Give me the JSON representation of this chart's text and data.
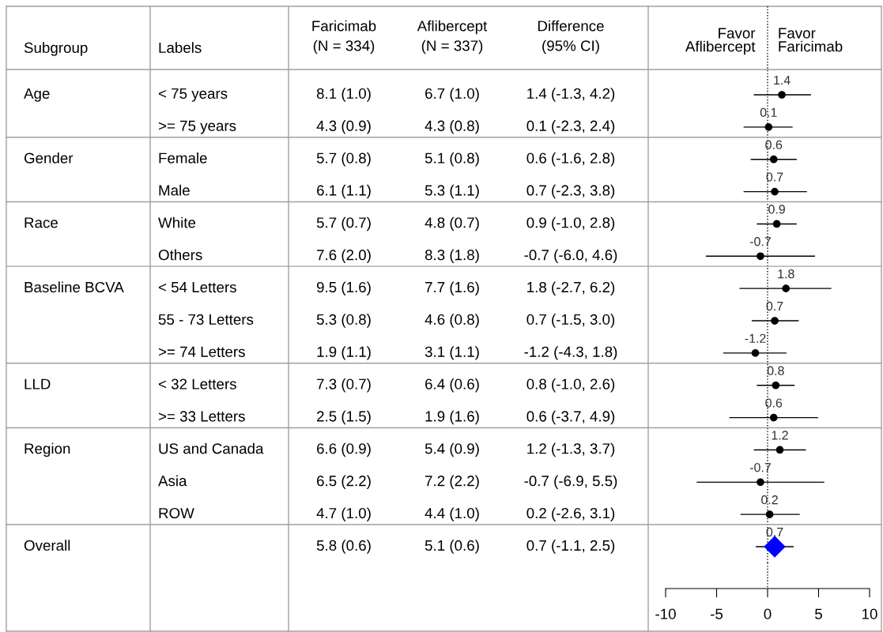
{
  "chart_data": [
    {
      "type": "other",
      "categories": [
        "Subgroup",
        "Labels",
        "Faricimab\n(N = 334)",
        "Aflibercept\n(N = 337)",
        "Difference\n(95% CI)"
      ],
      "cell_labels": [
        [
          "Age",
          "< 75 years",
          "8.1 (1.0)",
          "6.7 (1.0)",
          "1.4 (-1.3, 4.2)"
        ],
        [
          null,
          ">= 75 years",
          "4.3 (0.9)",
          "4.3 (0.8)",
          "0.1 (-2.3, 2.4)"
        ],
        [
          "Gender",
          "Female",
          "5.7 (0.8)",
          "5.1 (0.8)",
          "0.6 (-1.6, 2.8)"
        ],
        [
          null,
          "Male",
          "6.1 (1.1)",
          "5.3 (1.1)",
          "0.7 (-2.3, 3.8)"
        ],
        [
          "Race",
          "White",
          "5.7 (0.7)",
          "4.8 (0.7)",
          "0.9 (-1.0, 2.8)"
        ],
        [
          null,
          "Others",
          "7.6 (2.0)",
          "8.3 (1.8)",
          "-0.7 (-6.0, 4.6)"
        ],
        [
          "Baseline BCVA",
          "< 54 Letters",
          "9.5 (1.6)",
          "7.7 (1.6)",
          "1.8 (-2.7, 6.2)"
        ],
        [
          null,
          "55 - 73 Letters",
          "5.3 (0.8)",
          "4.6 (0.8)",
          "0.7 (-1.5, 3.0)"
        ],
        [
          null,
          ">= 74 Letters",
          "1.9 (1.1)",
          "3.1 (1.1)",
          "-1.2 (-4.3, 1.8)"
        ],
        [
          "LLD",
          "< 32 Letters",
          "7.3 (0.7)",
          "6.4 (0.6)",
          "0.8 (-1.0, 2.6)"
        ],
        [
          null,
          ">= 33 Letters",
          "2.5 (1.5)",
          "1.9 (1.6)",
          "0.6 (-3.7, 4.9)"
        ],
        [
          "Region",
          "US and Canada",
          "6.6 (0.9)",
          "5.4 (0.9)",
          "1.2 (-1.3, 3.7)"
        ],
        [
          null,
          "Asia",
          "6.5 (2.2)",
          "7.2 (2.2)",
          "-0.7 (-6.9, 5.5)"
        ],
        [
          null,
          "ROW",
          "4.7 (1.0)",
          "4.4 (1.0)",
          "0.2 (-2.6, 3.1)"
        ],
        [
          "Overall",
          null,
          "5.8 (0.6)",
          "5.1 (0.6)",
          "0.7 (-1.1, 2.5)"
        ]
      ]
    },
    {
      "type": "scatter",
      "orientation": "horizontal",
      "categories": [
        null,
        null,
        null,
        null,
        null,
        null,
        null,
        null,
        null,
        null,
        null,
        null,
        null,
        null,
        null
      ],
      "series": [
        {
          "color": "#000000",
          "marker": "circle",
          "values": [
            1.4,
            0.1,
            0.6,
            0.7,
            0.9,
            -0.7,
            1.8,
            0.7,
            -1.2,
            0.8,
            0.6,
            1.2,
            -0.7,
            0.2,
            null
          ],
          "errors": [
            [
              -1.3,
              4.2
            ],
            [
              -2.3,
              2.4
            ],
            [
              -1.6,
              2.8
            ],
            [
              -2.3,
              3.8
            ],
            [
              -1.0,
              2.8
            ],
            [
              -6.0,
              4.6
            ],
            [
              -2.7,
              6.2
            ],
            [
              -1.5,
              3.0
            ],
            [
              -4.3,
              1.8
            ],
            [
              -1.0,
              2.6
            ],
            [
              -3.7,
              4.9
            ],
            [
              -1.3,
              3.7
            ],
            [
              -6.9,
              5.5
            ],
            [
              -2.6,
              3.1
            ],
            null
          ]
        },
        {
          "color": "#0000ff",
          "marker": "diamond",
          "values": [
            null,
            null,
            null,
            null,
            null,
            null,
            null,
            null,
            null,
            null,
            null,
            null,
            null,
            null,
            0.7
          ],
          "errors": [
            null,
            null,
            null,
            null,
            null,
            null,
            null,
            null,
            null,
            null,
            null,
            null,
            null,
            null,
            [
              -1.1,
              2.5
            ]
          ]
        }
      ],
      "xlim": [
        -10,
        10
      ],
      "xticks": [
        -10,
        -5,
        0,
        5,
        10
      ],
      "ref_lines": [
        {
          "axis": "x",
          "value": 0,
          "line_style": "dotted",
          "color": "#000000"
        }
      ],
      "annotations": [
        "Favor\nAflibercept",
        "Favor\nFaricimab"
      ],
      "data_labels": true,
      "grid": false,
      "legend": false,
      "tick_labels": "x"
    }
  ]
}
